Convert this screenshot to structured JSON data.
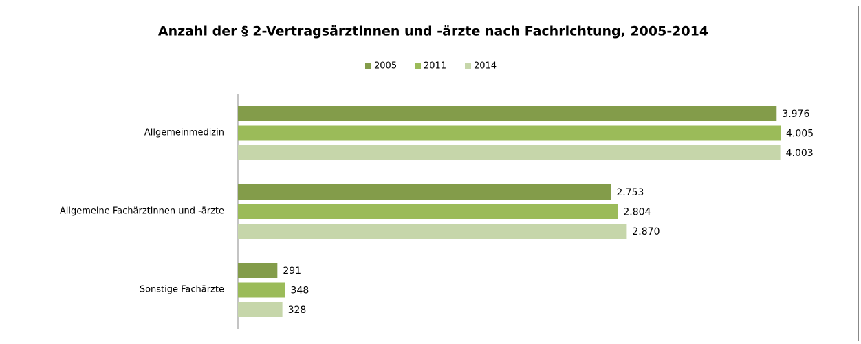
{
  "chart_data": {
    "type": "bar",
    "orientation": "horizontal",
    "title": "Anzahl der § 2-Vertragsärztinnen und -ärzte nach Fachrichtung, 2005-2014",
    "categories": [
      "Allgemeinmedizin",
      "Allgemeine Fachärztinnen und -ärzte",
      "Sonstige Fachärzte"
    ],
    "series": [
      {
        "name": "2005",
        "color": "#839c4a",
        "values": [
          3976,
          2753,
          291
        ],
        "value_labels": [
          "3.976",
          "2.753",
          "291"
        ]
      },
      {
        "name": "2011",
        "color": "#9bbb59",
        "values": [
          4005,
          2804,
          348
        ],
        "value_labels": [
          "4.005",
          "2.804",
          "348"
        ]
      },
      {
        "name": "2014",
        "color": "#c6d6aa",
        "values": [
          4003,
          2870,
          328
        ],
        "value_labels": [
          "4.003",
          "2.870",
          "328"
        ]
      }
    ],
    "legend": "top"
  }
}
